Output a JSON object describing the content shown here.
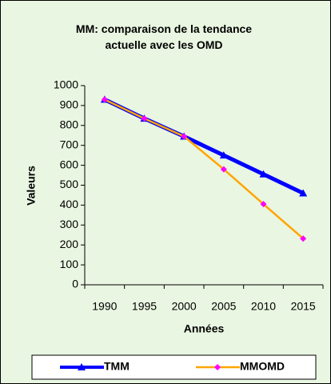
{
  "chart_data": {
    "type": "line",
    "title": "MM: comparaison de la tendance actuelle avec les OMD",
    "x_label": "Années",
    "y_label": "Valeurs",
    "categories": [
      "1990",
      "1995",
      "2000",
      "2005",
      "2010",
      "2015"
    ],
    "series": [
      {
        "name": "TMM",
        "color": "#0000ff",
        "marker": "triangle",
        "marker_color": "#0000ff",
        "values": [
          930,
          835,
          745,
          650,
          555,
          460
        ]
      },
      {
        "name": "MMOMD",
        "color": "#ffa500",
        "marker": "diamond",
        "marker_color": "#ff00ff",
        "values": [
          930,
          835,
          745,
          580,
          405,
          232
        ]
      }
    ],
    "ylim": [
      0,
      1000
    ],
    "yticks": [
      0,
      100,
      200,
      300,
      400,
      500,
      600,
      700,
      800,
      900,
      1000
    ],
    "legend": "bottom"
  }
}
